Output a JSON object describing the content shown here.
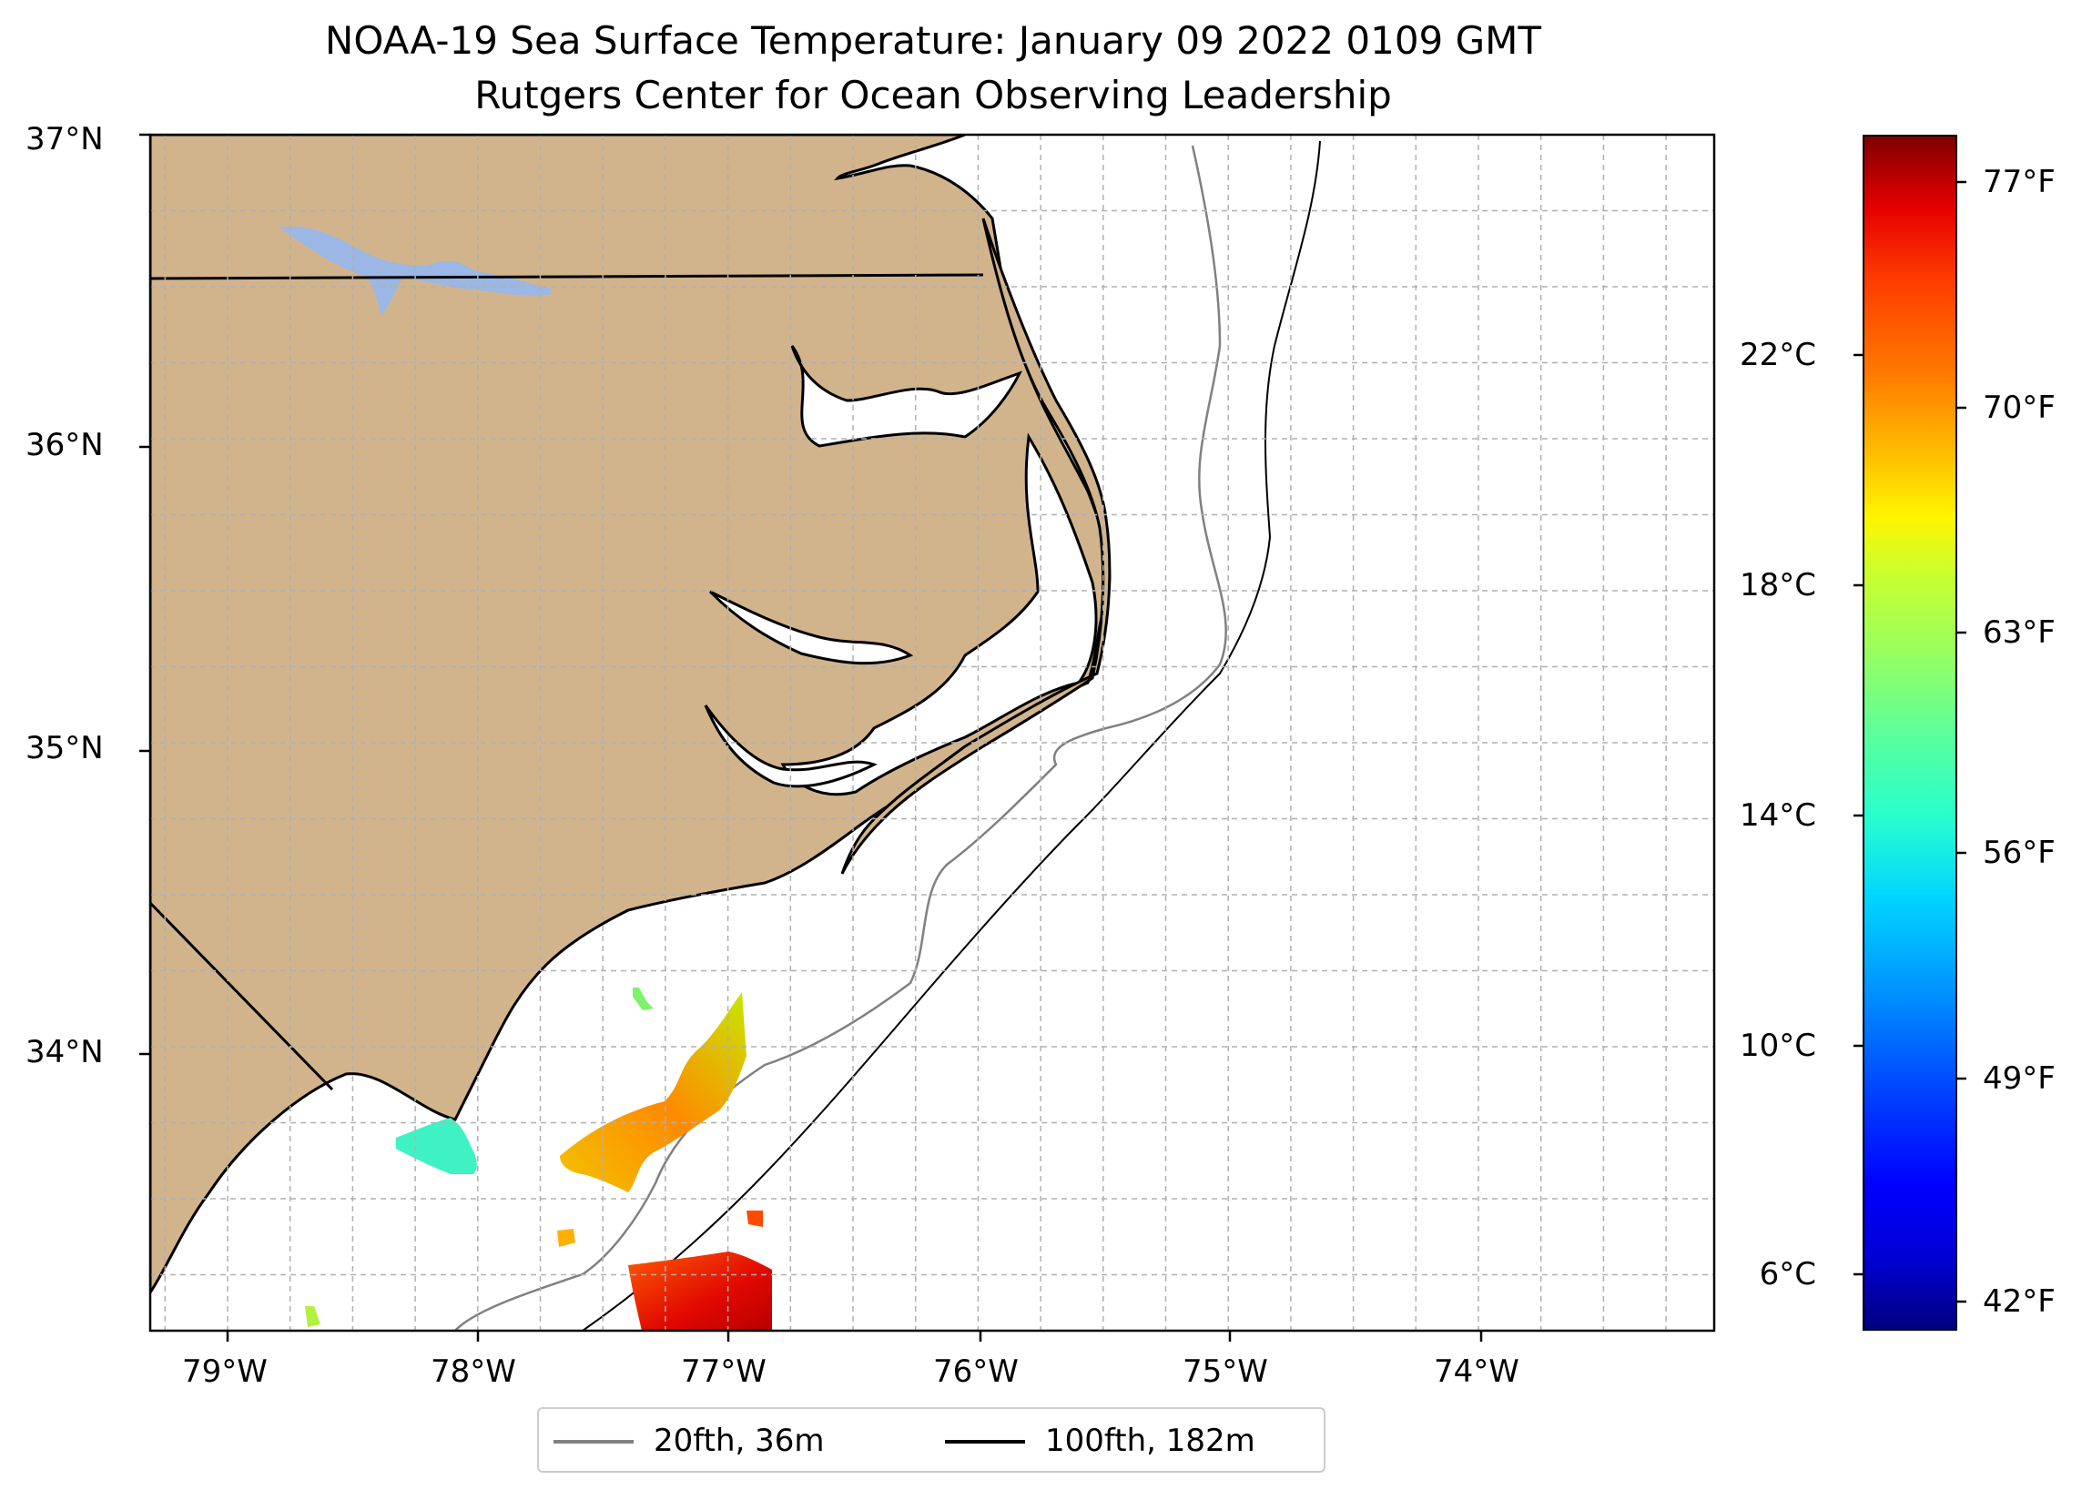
{
  "title": {
    "line1": "NOAA-19 Sea Surface Temperature: January 09 2022 0109 GMT",
    "line2": "Rutgers Center for Ocean Observing Leadership"
  },
  "map": {
    "lat_ticks": [
      "37°N",
      "36°N",
      "35°N",
      "34°N"
    ],
    "lon_ticks": [
      "79°W",
      "78°W",
      "77°W",
      "76°W",
      "75°W",
      "74°W"
    ],
    "land_color": "#d2b48c",
    "lake_color": "#9ab7e6",
    "ocean_color": "#ffffff",
    "gridlines": true
  },
  "legend": {
    "items": [
      {
        "label": "20fth, 36m",
        "color": "#808080"
      },
      {
        "label": "100fth, 182m",
        "color": "#000000"
      }
    ]
  },
  "colorbar": {
    "colormap": "jet",
    "celsius_ticks": [
      "22°C",
      "18°C",
      "14°C",
      "10°C",
      "6°C"
    ],
    "fahrenheit_ticks": [
      "77°F",
      "70°F",
      "63°F",
      "56°F",
      "49°F",
      "42°F"
    ]
  }
}
